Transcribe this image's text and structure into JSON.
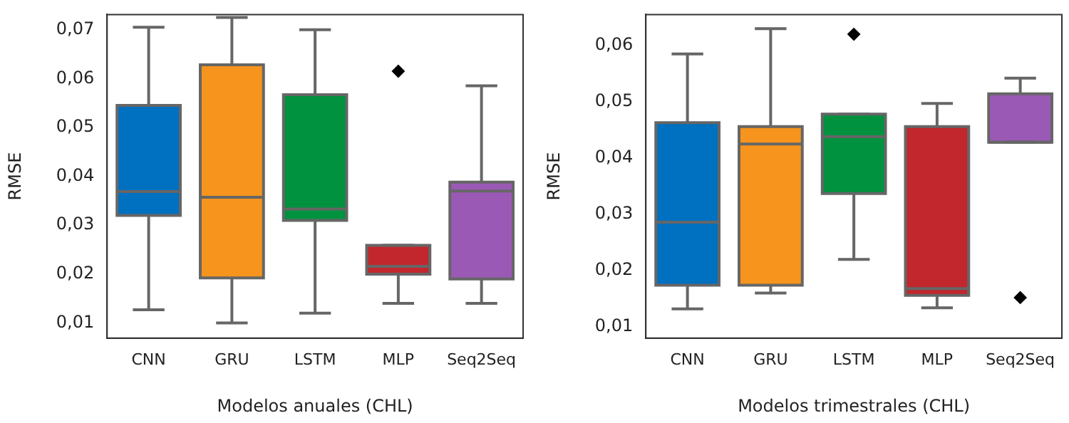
{
  "chart_data": [
    {
      "type": "box",
      "xlabel": "Modelos anuales (CHL)",
      "ylabel": "RMSE",
      "categories": [
        "CNN",
        "GRU",
        "LSTM",
        "MLP",
        "Seq2Seq"
      ],
      "colors": [
        "#0070c0",
        "#f7941d",
        "#00923f",
        "#c1272d",
        "#9b59b6"
      ],
      "boxes": [
        {
          "low": 0.0127,
          "q1": 0.032,
          "median": 0.0369,
          "q3": 0.0545,
          "high": 0.0705
        },
        {
          "low": 0.01,
          "q1": 0.0192,
          "median": 0.0357,
          "q3": 0.0628,
          "high": 0.0725
        },
        {
          "low": 0.012,
          "q1": 0.031,
          "median": 0.0333,
          "q3": 0.0567,
          "high": 0.07
        },
        {
          "low": 0.014,
          "q1": 0.02,
          "median": 0.0216,
          "q3": 0.0259,
          "high": 0.0259,
          "outliers": [
            0.0615
          ]
        },
        {
          "low": 0.014,
          "q1": 0.019,
          "median": 0.037,
          "q3": 0.0388,
          "high": 0.0585
        }
      ],
      "ylim": [
        0.0069,
        0.0731
      ],
      "yticks": [
        {
          "value": 0.01,
          "label": "0,01"
        },
        {
          "value": 0.02,
          "label": "0,02"
        },
        {
          "value": 0.03,
          "label": "0,03"
        },
        {
          "value": 0.04,
          "label": "0,04"
        },
        {
          "value": 0.05,
          "label": "0,05"
        },
        {
          "value": 0.06,
          "label": "0,06"
        },
        {
          "value": 0.07,
          "label": "0,07"
        }
      ],
      "grid": false,
      "legend": false,
      "marker": "diamond"
    },
    {
      "type": "box",
      "xlabel": "Modelos trimestrales (CHL)",
      "ylabel": "RMSE",
      "categories": [
        "CNN",
        "GRU",
        "LSTM",
        "MLP",
        "Seq2Seq"
      ],
      "colors": [
        "#0070c0",
        "#f7941d",
        "#00923f",
        "#c1272d",
        "#9b59b6"
      ],
      "boxes": [
        {
          "low": 0.0132,
          "q1": 0.0174,
          "median": 0.0286,
          "q3": 0.0463,
          "high": 0.0585
        },
        {
          "low": 0.016,
          "q1": 0.0174,
          "median": 0.0425,
          "q3": 0.0456,
          "high": 0.063
        },
        {
          "low": 0.022,
          "q1": 0.0337,
          "median": 0.0438,
          "q3": 0.0478,
          "high": 0.0478,
          "outliers": [
            0.062
          ]
        },
        {
          "low": 0.0134,
          "q1": 0.0156,
          "median": 0.0168,
          "q3": 0.0456,
          "high": 0.0497
        },
        {
          "low": 0.0428,
          "q1": 0.0428,
          "median": 0.0428,
          "q3": 0.0514,
          "high": 0.0542,
          "outliers": [
            0.0152
          ]
        }
      ],
      "ylim": [
        0.008,
        0.0655
      ],
      "yticks": [
        {
          "value": 0.01,
          "label": "0,01"
        },
        {
          "value": 0.02,
          "label": "0,02"
        },
        {
          "value": 0.03,
          "label": "0,03"
        },
        {
          "value": 0.04,
          "label": "0,04"
        },
        {
          "value": 0.05,
          "label": "0,05"
        },
        {
          "value": 0.06,
          "label": "0,06"
        }
      ],
      "grid": false,
      "legend": false,
      "marker": "diamond"
    }
  ]
}
